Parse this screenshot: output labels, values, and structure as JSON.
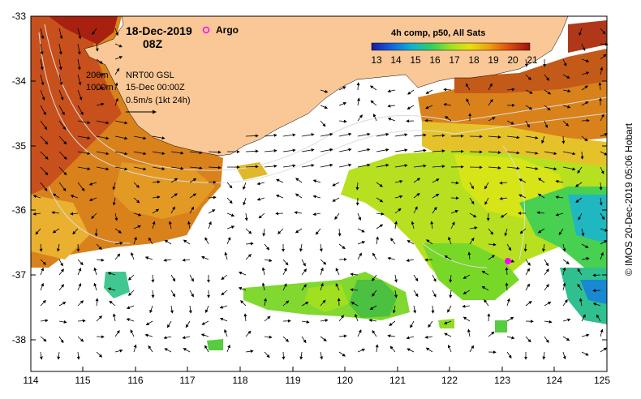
{
  "header": {
    "date": "18-Dec-2019",
    "time": "08Z",
    "argo_label": "Argo"
  },
  "legend": {
    "depth_200": "200m",
    "depth_1000": "1000m",
    "product": "NRT00 GSL",
    "product_date": "15-Dec 00:00Z",
    "vector_scale": "0.5m/s (1kt 24h)"
  },
  "colorbar": {
    "title": "4h comp, p50, All Sats",
    "ticks": [
      "13",
      "14",
      "15",
      "16",
      "17",
      "18",
      "19",
      "20",
      "21"
    ]
  },
  "axes": {
    "y_ticks": [
      "-33",
      "-34",
      "-35",
      "-36",
      "-37",
      "-38"
    ],
    "x_ticks": [
      "114",
      "115",
      "116",
      "117",
      "118",
      "119",
      "120",
      "121",
      "122",
      "123",
      "124",
      "125"
    ]
  },
  "credit": "© IMOS 20-Dec-2019 05:06 Hobart",
  "colors": {
    "land": "#fac896",
    "frame": "#000000",
    "argo": "#ff00ff",
    "contour": "#dddddd"
  },
  "argo_float": {
    "lon": 123.05,
    "lat": -36.82
  }
}
